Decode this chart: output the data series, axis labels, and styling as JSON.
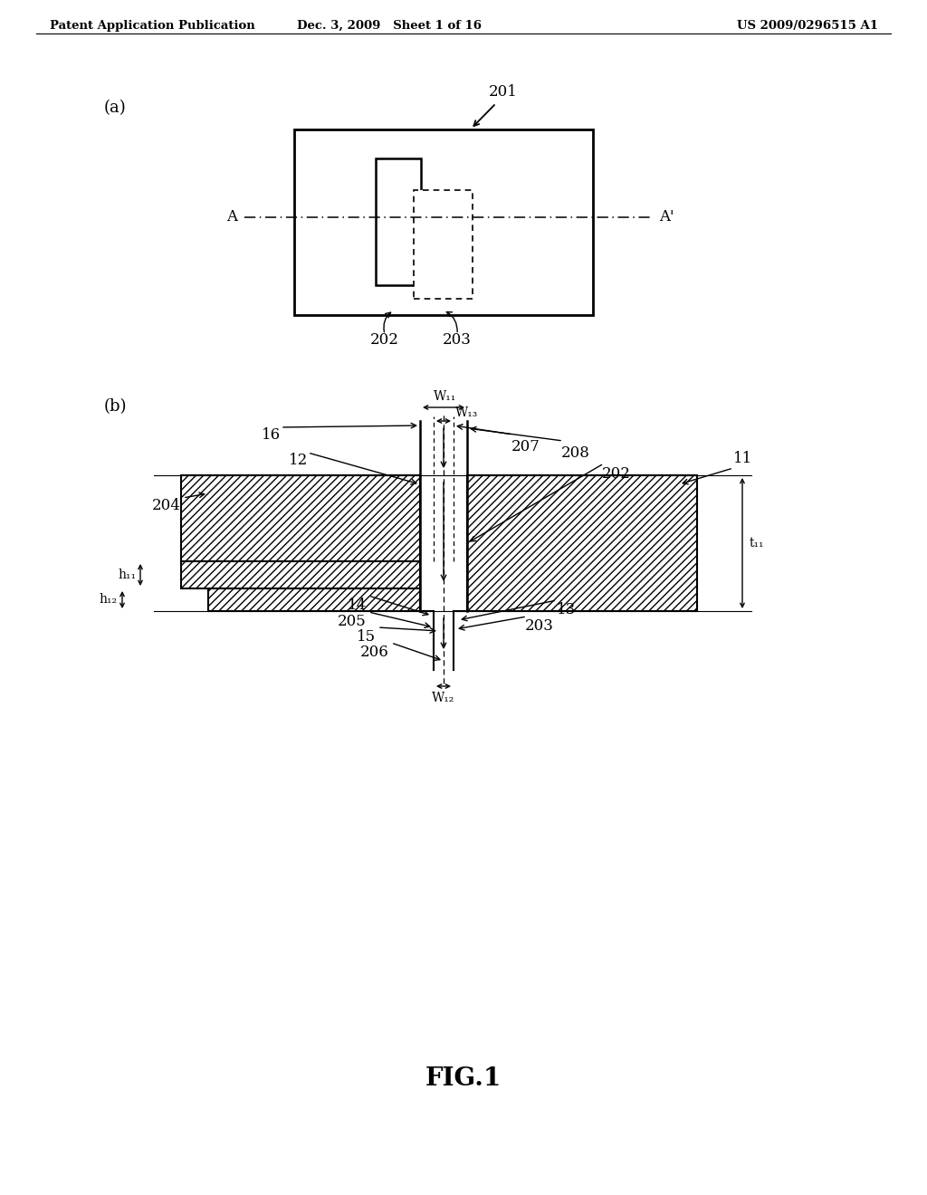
{
  "bg_color": "#ffffff",
  "header_left": "Patent Application Publication",
  "header_mid": "Dec. 3, 2009   Sheet 1 of 16",
  "header_right": "US 2009/0296515 A1",
  "fig_label": "FIG.1",
  "part_a_label": "(a)",
  "part_b_label": "(b)"
}
